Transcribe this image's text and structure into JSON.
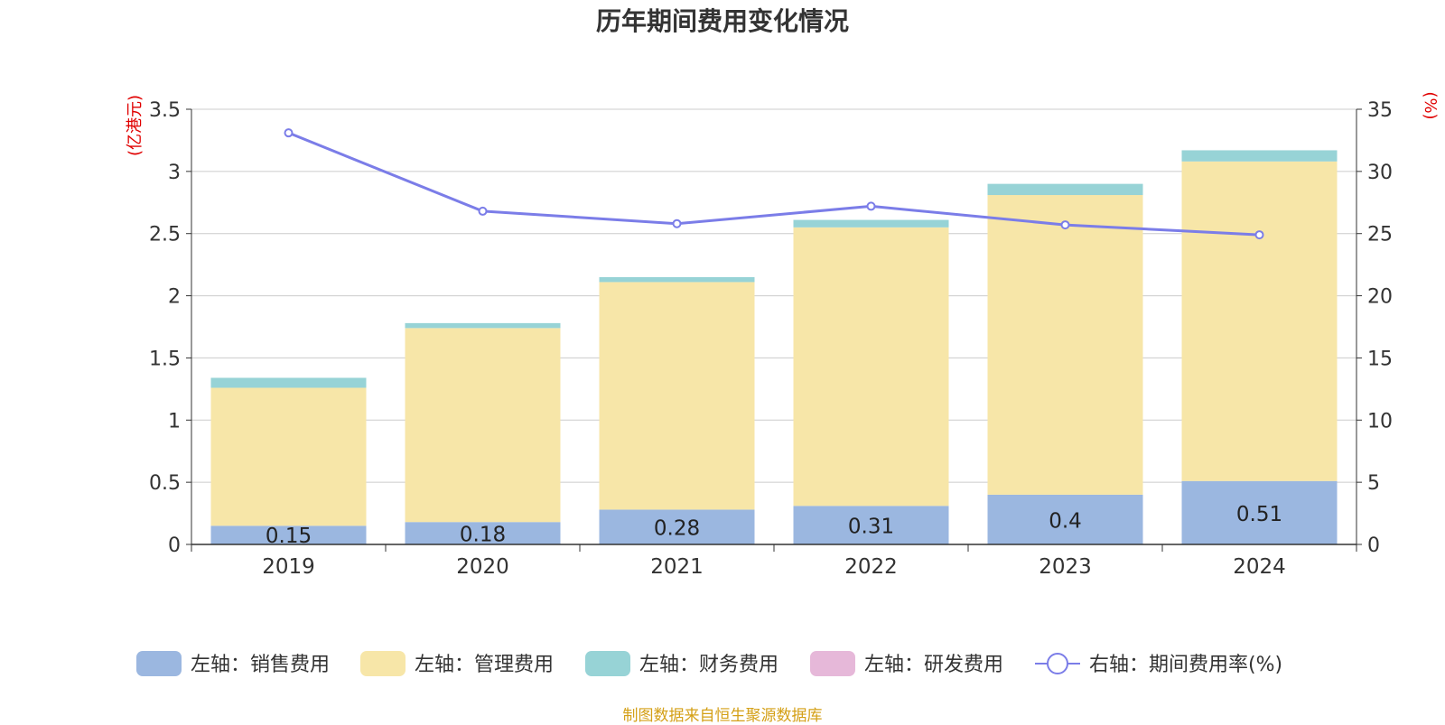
{
  "chart_data": {
    "type": "bar",
    "title": "历年期间费用变化情况",
    "categories": [
      "2019",
      "2020",
      "2021",
      "2022",
      "2023",
      "2024"
    ],
    "left_axis": {
      "unit_label": "(亿港元)",
      "ylim": [
        0,
        3.5
      ],
      "ticks": [
        "0",
        "0.5",
        "1",
        "1.5",
        "2",
        "2.5",
        "3",
        "3.5"
      ]
    },
    "right_axis": {
      "unit_label": "(%)",
      "ylim": [
        0,
        35
      ],
      "ticks": [
        "0",
        "5",
        "10",
        "15",
        "20",
        "25",
        "30",
        "35"
      ]
    },
    "stacked": true,
    "grid": true,
    "legend_position": "bottom",
    "series": [
      {
        "name": "左轴：销售费用",
        "type": "bar",
        "axis": "left",
        "color": "#9bb7e0",
        "values": [
          0.15,
          0.18,
          0.28,
          0.31,
          0.4,
          0.51
        ],
        "data_labels": [
          "0.15",
          "0.18",
          "0.28",
          "0.31",
          "0.4",
          "0.51"
        ]
      },
      {
        "name": "左轴：管理费用",
        "type": "bar",
        "axis": "left",
        "color": "#f7e6a8",
        "values": [
          1.11,
          1.56,
          1.83,
          2.24,
          2.41,
          2.57
        ]
      },
      {
        "name": "左轴：财务费用",
        "type": "bar",
        "axis": "left",
        "color": "#97d3d6",
        "values": [
          0.08,
          0.04,
          0.04,
          0.06,
          0.09,
          0.09
        ]
      },
      {
        "name": "左轴：研发费用",
        "type": "bar",
        "axis": "left",
        "color": "#e6b8d9",
        "values": [
          0,
          0,
          0,
          0,
          0,
          0
        ]
      },
      {
        "name": "右轴：期间费用率(%)",
        "type": "line",
        "axis": "right",
        "color": "#7b7de8",
        "values": [
          33.1,
          26.8,
          25.8,
          27.2,
          25.7,
          24.9
        ]
      }
    ]
  },
  "source": "制图数据来自恒生聚源数据库"
}
